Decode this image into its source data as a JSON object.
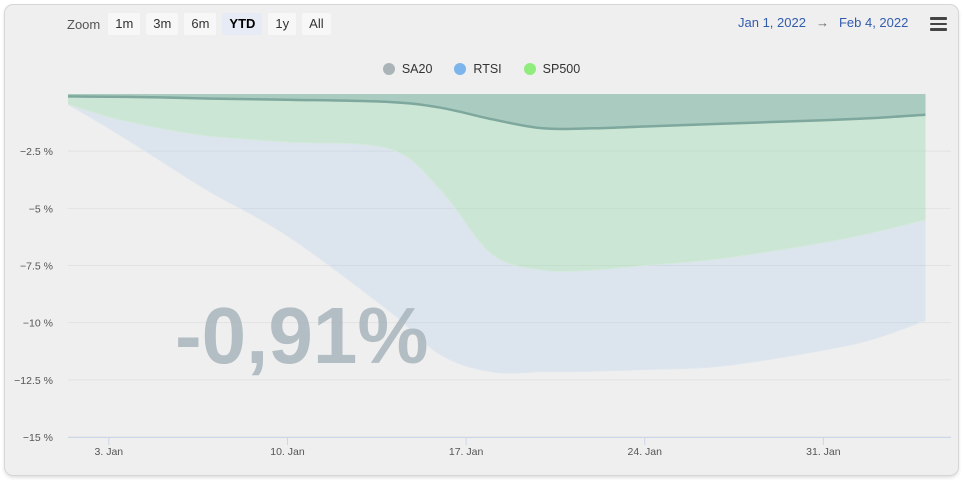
{
  "toolbar": {
    "zoom_label": "Zoom",
    "buttons": [
      "1m",
      "3m",
      "6m",
      "YTD",
      "1y",
      "All"
    ],
    "active_button": "YTD",
    "range_from": "Jan 1, 2022",
    "range_arrow": "→",
    "range_to": "Feb 4, 2022"
  },
  "overlay": {
    "value": "-0,91%"
  },
  "chart_data": {
    "type": "area",
    "title": "",
    "xlabel": "",
    "ylabel": "",
    "x": [
      1,
      3,
      5,
      7,
      10,
      14,
      16,
      18,
      20,
      22,
      24,
      27,
      31,
      33,
      35
    ],
    "x_unit": "day of January 2022 (32 = Feb 1)",
    "xlim": [
      1.4,
      36
    ],
    "ylim": [
      -15,
      0
    ],
    "yticks": [
      -2.5,
      -5,
      -7.5,
      -10,
      -12.5,
      -15
    ],
    "ytick_labels": [
      "−2.5 %",
      "−5 %",
      "−7.5 %",
      "−10 %",
      "−12.5 %",
      "−15 %"
    ],
    "xticks": [
      3,
      10,
      17,
      24,
      31
    ],
    "xtick_labels": [
      "3. Jan",
      "10. Jan",
      "17. Jan",
      "24. Jan",
      "31. Jan"
    ],
    "legend_position": "top-center",
    "series": [
      {
        "name": "SA20",
        "color": "#8fb5ad",
        "values": [
          -0.1,
          -0.12,
          -0.15,
          -0.2,
          -0.25,
          -0.35,
          -0.6,
          -1.1,
          -1.5,
          -1.5,
          -1.42,
          -1.3,
          -1.15,
          -1.05,
          -0.91
        ]
      },
      {
        "name": "RTSI",
        "color": "#7cb5ec",
        "values": [
          -0.2,
          -1.5,
          -2.9,
          -4.3,
          -6.2,
          -9.5,
          -11.4,
          -12.15,
          -12.15,
          -12.12,
          -12.05,
          -11.9,
          -11.2,
          -10.7,
          -9.9
        ]
      },
      {
        "name": "SP500",
        "color": "#90ed7d",
        "values": [
          -0.3,
          -1.0,
          -1.5,
          -1.85,
          -2.1,
          -2.4,
          -4.2,
          -7.0,
          -7.7,
          -7.7,
          -7.5,
          -7.2,
          -6.5,
          -6.05,
          -5.5
        ]
      }
    ],
    "legend_colors": {
      "SA20": "#aab4b8",
      "RTSI": "#7cb5ec",
      "SP500": "#90ed7d"
    }
  }
}
